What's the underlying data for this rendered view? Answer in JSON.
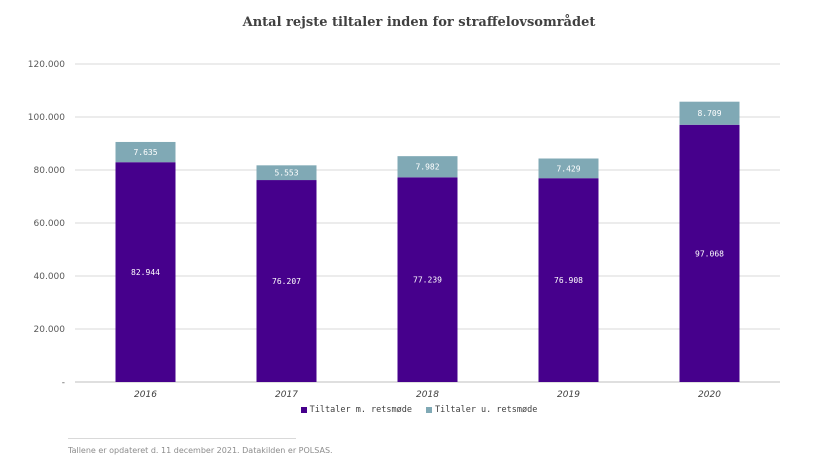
{
  "chart_data": {
    "type": "bar",
    "stacked": true,
    "title": "Antal rejste tiltaler inden for straffelovsområdet",
    "categories": [
      "2016",
      "2017",
      "2018",
      "2019",
      "2020"
    ],
    "series": [
      {
        "name": "Tiltaler m. retsmøde",
        "values": [
          82944,
          76207,
          77239,
          76908,
          97068
        ],
        "labels": [
          "82.944",
          "76.207",
          "77.239",
          "76.908",
          "97.068"
        ],
        "color": "#46008c"
      },
      {
        "name": "Tiltaler u. retsmøde",
        "values": [
          7635,
          5553,
          7982,
          7429,
          8709
        ],
        "labels": [
          "7.635",
          "5.553",
          "7.982",
          "7.429",
          "8.709"
        ],
        "color": "#80a9b5"
      }
    ],
    "ylim": [
      0,
      120000
    ],
    "yticks": [
      0,
      20000,
      40000,
      60000,
      80000,
      100000,
      120000
    ],
    "ytick_labels": [
      "-",
      "20.000",
      "40.000",
      "60.000",
      "80.000",
      "100.000",
      "120.000"
    ],
    "grid": true,
    "legend_position": "bottom"
  },
  "footnote": "Tallene er opdateret d. 11 december 2021. Datakilden er POLSAS."
}
